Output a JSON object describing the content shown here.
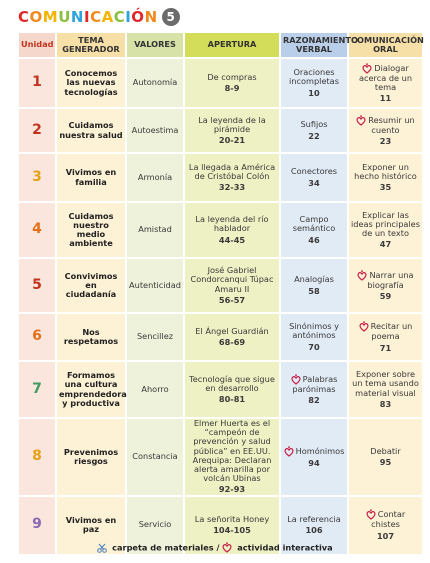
{
  "title": {
    "text": "COMUNICACIÓN",
    "number": "5"
  },
  "headers": {
    "unidad": "Unidad",
    "tema": "TEMA GENERADOR",
    "valores": "VALORES",
    "apertura": "APERTURA",
    "razonamiento": "RAZONAMIENTO VERBAL",
    "comunicacion": "COMUNICACIÓN ORAL"
  },
  "rows": [
    {
      "unidad": "1",
      "tema": "Conocemos las nuevas tecnologías",
      "valor": "Autonomía",
      "apertura": "De compras",
      "apertura_pg": "8-9",
      "razon": "Oraciones incompletas",
      "razon_pg": "10",
      "razon_icon": "",
      "com": "Dialogar acerca de un tema",
      "com_pg": "11",
      "com_icon": "interactive-icon"
    },
    {
      "unidad": "2",
      "tema": "Cuidamos nuestra salud",
      "valor": "Autoestima",
      "apertura": "La leyenda de la pirámide",
      "apertura_pg": "20-21",
      "razon": "Sufijos",
      "razon_pg": "22",
      "razon_icon": "",
      "com": "Resumir un cuento",
      "com_pg": "23",
      "com_icon": "interactive-icon"
    },
    {
      "unidad": "3",
      "tema": "Vivimos en familia",
      "valor": "Armonía",
      "apertura": "La llegada a América de Cristóbal Colón",
      "apertura_pg": "32-33",
      "razon": "Conectores",
      "razon_pg": "34",
      "razon_icon": "",
      "com": "Exponer un hecho histórico",
      "com_pg": "35",
      "com_icon": ""
    },
    {
      "unidad": "4",
      "tema": "Cuidamos nuestro medio ambiente",
      "valor": "Amistad",
      "apertura": "La leyenda del río hablador",
      "apertura_pg": "44-45",
      "razon": "Campo semántico",
      "razon_pg": "46",
      "razon_icon": "",
      "com": "Explicar las ideas principales de un texto",
      "com_pg": "47",
      "com_icon": ""
    },
    {
      "unidad": "5",
      "tema": "Convivimos en ciudadanía",
      "valor": "Autenticidad",
      "apertura": "José Gabriel Condorcanqui Túpac Amaru II",
      "apertura_pg": "56-57",
      "razon": "Analogías",
      "razon_pg": "58",
      "razon_icon": "",
      "com": "Narrar una biografía",
      "com_pg": "59",
      "com_icon": "interactive-icon"
    },
    {
      "unidad": "6",
      "tema": "Nos respetamos",
      "valor": "Sencillez",
      "apertura": "El Ángel Guardián",
      "apertura_pg": "68-69",
      "razon": "Sinónimos y antónimos",
      "razon_pg": "70",
      "razon_icon": "",
      "com": "Recitar un poema",
      "com_pg": "71",
      "com_icon": "interactive-icon"
    },
    {
      "unidad": "7",
      "tema": "Formamos una cultura emprendedora y productiva",
      "valor": "Ahorro",
      "apertura": "Tecnología que sigue en desarrollo",
      "apertura_pg": "80-81",
      "razon": "Palabras parónimas",
      "razon_pg": "82",
      "razon_icon": "interactive-icon",
      "com": "Exponer sobre un tema usando material visual",
      "com_pg": "83",
      "com_icon": ""
    },
    {
      "unidad": "8",
      "tema": "Prevenimos riesgos",
      "valor": "Constancia",
      "apertura": "Elmer Huerta es el “campeón de prevención y salud pública” en EE.UU. Arequipa: Declaran alerta amarilla por volcán Ubinas",
      "apertura_pg": "92-93",
      "razon": "Homónimos",
      "razon_pg": "94",
      "razon_icon": "interactive-icon",
      "com": "Debatir",
      "com_pg": "95",
      "com_icon": ""
    },
    {
      "unidad": "9",
      "tema": "Vivimos en paz",
      "valor": "Servicio",
      "apertura": "La señorita Honey",
      "apertura_pg": "104-105",
      "razon": "La referencia",
      "razon_pg": "106",
      "razon_icon": "",
      "com": "Contar chistes",
      "com_pg": "107",
      "com_icon": "interactive-icon"
    }
  ],
  "legend": {
    "materials": "carpeta de materiales /",
    "interactive": "actividad interactiva"
  },
  "colors": {
    "title_letters": [
      "#e0282a",
      "#f08a1c",
      "#f4b400",
      "#8cbf3f",
      "#2ea3dc",
      "#e0282a",
      "#f08a1c",
      "#f4b400",
      "#8cbf3f",
      "#2ea3dc",
      "#e0282a",
      "#f08a1c"
    ],
    "unit_numbers": [
      "#c2341f",
      "#c2341f",
      "#e3a21a",
      "#e36f1a",
      "#c2341f",
      "#e36f1a",
      "#3f9a5f",
      "#e3a21a",
      "#8a6bb0"
    ]
  }
}
